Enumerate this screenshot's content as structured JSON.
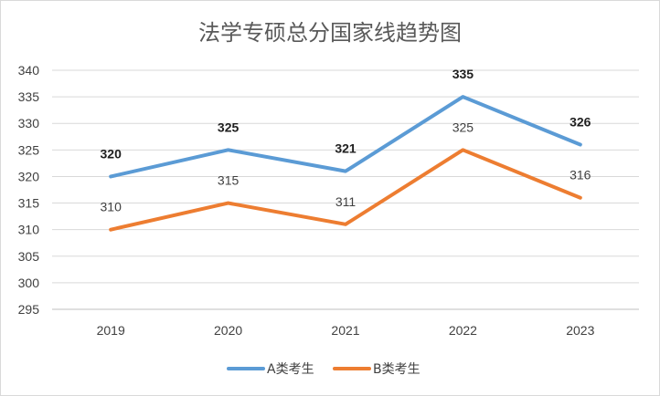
{
  "chart_data": {
    "type": "line",
    "title": "法学专硕总分国家线趋势图",
    "categories": [
      "2019",
      "2020",
      "2021",
      "2022",
      "2023"
    ],
    "series": [
      {
        "name": "A类考生",
        "values": [
          320,
          325,
          321,
          335,
          326
        ],
        "color": "#5b9bd5",
        "label_weight": "bold"
      },
      {
        "name": "B类考生",
        "values": [
          310,
          315,
          311,
          325,
          316
        ],
        "color": "#ed7d31",
        "label_weight": "normal"
      }
    ],
    "ylim": [
      295,
      340
    ],
    "yticks": [
      295,
      300,
      305,
      310,
      315,
      320,
      325,
      330,
      335,
      340
    ],
    "grid": true,
    "legend": "bottom"
  }
}
